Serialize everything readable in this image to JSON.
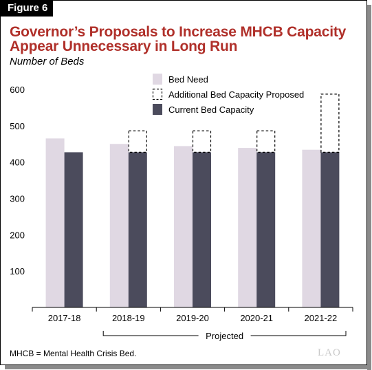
{
  "figure_label": "Figure 6",
  "title_line1": "Governor’s Proposals to Increase MHCB Capacity",
  "title_line2": "Appear Unnecessary in Long Run",
  "subtitle": "Number of Beds",
  "note": "MHCB = Mental Health Crisis Bed.",
  "logo": "LAO",
  "colors": {
    "bed_need": "#e0d8e3",
    "current": "#4b4b5c",
    "proposed_border": "#000000",
    "title": "#b0302a"
  },
  "chart_data": {
    "type": "bar",
    "categories": [
      "2017-18",
      "2018-19",
      "2019-20",
      "2020-21",
      "2021-22"
    ],
    "series": [
      {
        "name": "Bed Need",
        "values": [
          465,
          450,
          444,
          439,
          434
        ]
      },
      {
        "name": "Current Bed Capacity",
        "values": [
          427,
          427,
          427,
          427,
          427
        ]
      },
      {
        "name": "Additional Bed Capacity Proposed",
        "values": [
          0,
          59,
          59,
          59,
          160
        ],
        "stacked_on": "Current Bed Capacity"
      }
    ],
    "legend": [
      "Bed Need",
      "Additional Bed Capacity Proposed",
      "Current Bed Capacity"
    ],
    "legend_position": "top-right",
    "y_ticks": [
      100,
      200,
      300,
      400,
      500,
      600
    ],
    "ylim": [
      0,
      600
    ],
    "bracket_label": "Projected",
    "grid": false
  }
}
